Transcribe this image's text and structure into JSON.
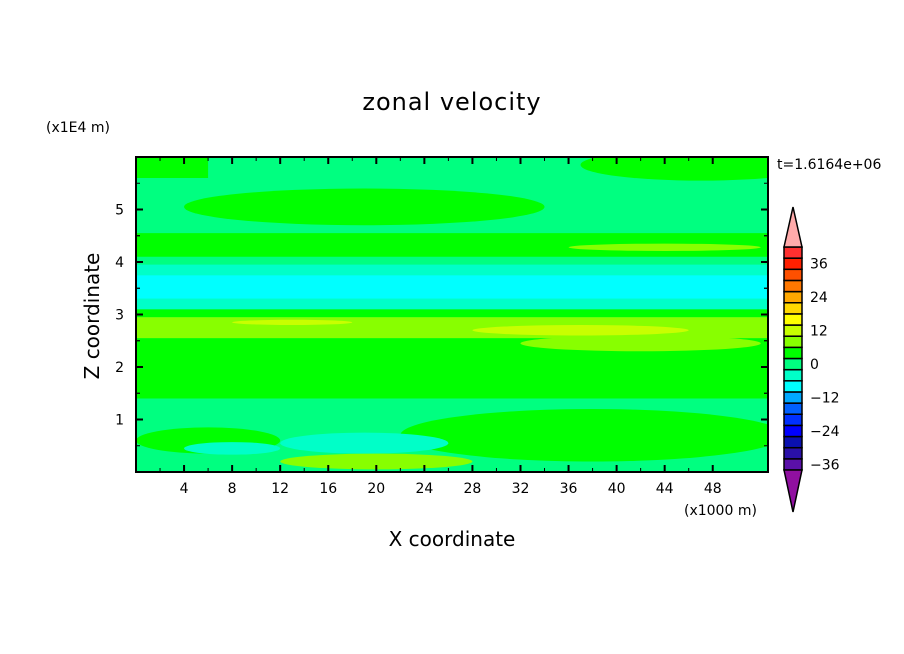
{
  "chart_data": {
    "type": "heatmap",
    "title": "zonal velocity",
    "xlabel": "X coordinate",
    "ylabel": "Z coordinate",
    "x_unit_label": "(x1000 m)",
    "y_unit_label": "(x1E4 m)",
    "time_label": "t=1.6164e+06",
    "xlim": [
      0,
      52.6
    ],
    "ylim": [
      0,
      6
    ],
    "xticks": [
      4,
      8,
      12,
      16,
      20,
      24,
      28,
      32,
      36,
      40,
      44,
      48
    ],
    "yticks": [
      1,
      2,
      3,
      4,
      5
    ],
    "colorbar": {
      "levels": [
        -40,
        -36,
        -32,
        -28,
        -24,
        -20,
        -16,
        -12,
        -8,
        -4,
        0,
        4,
        8,
        12,
        16,
        20,
        24,
        28,
        32,
        36,
        40
      ],
      "colors": [
        "#5a10a8",
        "#2a10a8",
        "#0a10b0",
        "#0000ff",
        "#0030ff",
        "#0060ff",
        "#00a8ff",
        "#00ffff",
        "#00ffc8",
        "#00ff80",
        "#00ff00",
        "#88ff00",
        "#c8ff00",
        "#ffff00",
        "#ffd800",
        "#ffa800",
        "#ff7800",
        "#ff5000",
        "#ff2000",
        "#ff3030"
      ],
      "over_color": "#ffaaaa",
      "under_color": "#9010a0",
      "tick_labels": [
        "36",
        "24",
        "12",
        "0",
        "-12",
        "-24",
        "-36"
      ],
      "tick_values": [
        36,
        24,
        12,
        0,
        -12,
        -24,
        -36
      ]
    },
    "background_value": -2,
    "regions": [
      {
        "shape": "rect",
        "x0": 0,
        "x1": 52.6,
        "z0": 1.4,
        "z1": 2.55,
        "value": 2
      },
      {
        "shape": "rect",
        "x0": 0,
        "x1": 52.6,
        "z0": 2.55,
        "z1": 2.95,
        "value": 6
      },
      {
        "shape": "ellipse",
        "cx": 37,
        "cz": 2.7,
        "rx": 9,
        "rz": 0.1,
        "value": 10
      },
      {
        "shape": "ellipse",
        "cx": 13,
        "cz": 2.85,
        "rx": 5,
        "rz": 0.05,
        "value": 10
      },
      {
        "shape": "ellipse",
        "cx": 42,
        "cz": 2.45,
        "rx": 10,
        "rz": 0.15,
        "value": 6
      },
      {
        "shape": "rect",
        "x0": 0,
        "x1": 52.6,
        "z0": 2.95,
        "z1": 3.1,
        "value": 2
      },
      {
        "shape": "rect",
        "x0": 0,
        "x1": 52.6,
        "z0": 3.1,
        "z1": 3.3,
        "value": -6
      },
      {
        "shape": "rect",
        "x0": 0,
        "x1": 52.6,
        "z0": 3.3,
        "z1": 3.75,
        "value": -10
      },
      {
        "shape": "rect",
        "x0": 0,
        "x1": 52.6,
        "z0": 3.75,
        "z1": 3.95,
        "value": -6
      },
      {
        "shape": "rect",
        "x0": 0,
        "x1": 52.6,
        "z0": 4.1,
        "z1": 4.55,
        "value": 2
      },
      {
        "shape": "ellipse",
        "cx": 44,
        "cz": 4.28,
        "rx": 8,
        "rz": 0.07,
        "value": 6
      },
      {
        "shape": "ellipse",
        "cx": 19,
        "cz": 5.05,
        "rx": 15,
        "rz": 0.35,
        "value": 2
      },
      {
        "shape": "rect",
        "x0": 0,
        "x1": 6,
        "z0": 5.6,
        "z1": 6,
        "value": 2
      },
      {
        "shape": "ellipse",
        "cx": 47,
        "cz": 5.85,
        "rx": 10,
        "rz": 0.3,
        "value": 2
      },
      {
        "shape": "ellipse",
        "cx": 38,
        "cz": 0.7,
        "rx": 16,
        "rz": 0.5,
        "value": 2
      },
      {
        "shape": "ellipse",
        "cx": 6,
        "cz": 0.6,
        "rx": 6,
        "rz": 0.25,
        "value": 2
      },
      {
        "shape": "ellipse",
        "cx": 19,
        "cz": 0.55,
        "rx": 7,
        "rz": 0.2,
        "value": -6
      },
      {
        "shape": "ellipse",
        "cx": 8,
        "cz": 0.45,
        "rx": 4,
        "rz": 0.12,
        "value": -6
      },
      {
        "shape": "ellipse",
        "cx": 20,
        "cz": 0.2,
        "rx": 8,
        "rz": 0.15,
        "value": 6
      },
      {
        "shape": "ellipse",
        "cx": 48,
        "cz": 0.6,
        "rx": 3,
        "rz": 0.2,
        "value": 2
      }
    ]
  }
}
